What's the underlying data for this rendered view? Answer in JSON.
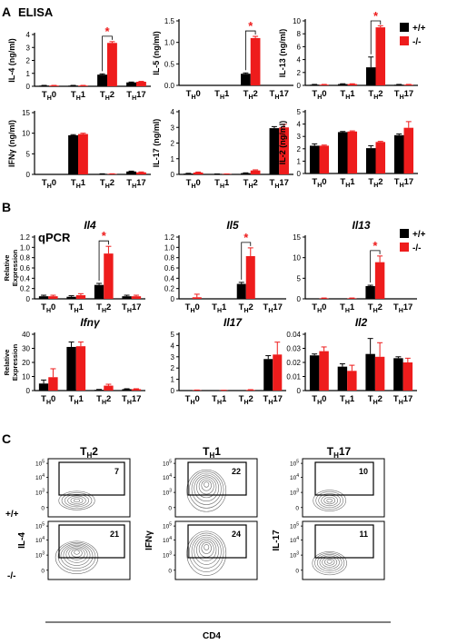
{
  "figure": {
    "section_A": {
      "letter": "A",
      "title": "ELISA"
    },
    "section_B": {
      "letter": "B",
      "title": "qPCR"
    },
    "section_C": {
      "letter": "C"
    }
  },
  "legend": {
    "wt_label": "+/+",
    "ko_label": "-/-",
    "wt_color": "#000000",
    "ko_color": "#ee1c1c"
  },
  "categories": [
    {
      "base": "T",
      "sub": "H",
      "suffix": "0"
    },
    {
      "base": "T",
      "sub": "H",
      "suffix": "1"
    },
    {
      "base": "T",
      "sub": "H",
      "suffix": "2"
    },
    {
      "base": "T",
      "sub": "H",
      "suffix": "17"
    }
  ],
  "chart_data": [
    {
      "type": "bar",
      "panel": "A",
      "ylabel": "IL-4 (ng/ml)",
      "ylim": [
        0,
        4
      ],
      "yticks": [
        "0",
        "1",
        "2",
        "3",
        "4"
      ],
      "series": [
        {
          "name": "+/+",
          "values": [
            0.05,
            0.05,
            0.9,
            0.3
          ],
          "errors": [
            0.02,
            0.02,
            0.06,
            0.03
          ]
        },
        {
          "name": "-/-",
          "values": [
            0.05,
            0.05,
            3.35,
            0.35
          ],
          "errors": [
            0.02,
            0.02,
            0.1,
            0.03
          ]
        }
      ],
      "significance": {
        "category": 2,
        "label": "*"
      }
    },
    {
      "type": "bar",
      "panel": "A",
      "ylabel": "IL-5 (ng/ml)",
      "ylim": [
        0,
        1.5
      ],
      "yticks": [
        "0.0",
        "0.5",
        "1.0",
        "1.5"
      ],
      "series": [
        {
          "name": "+/+",
          "values": [
            0,
            0,
            0.27,
            0
          ],
          "errors": [
            0,
            0,
            0.02,
            0
          ]
        },
        {
          "name": "-/-",
          "values": [
            0,
            0,
            1.1,
            0
          ],
          "errors": [
            0,
            0,
            0.04,
            0
          ]
        }
      ],
      "significance": {
        "category": 2,
        "label": "*"
      }
    },
    {
      "type": "bar",
      "panel": "A",
      "ylabel": "IL-13 (ng/ml)",
      "ylim": [
        0,
        10
      ],
      "yticks": [
        "0",
        "2",
        "4",
        "6",
        "8",
        "10"
      ],
      "series": [
        {
          "name": "+/+",
          "values": [
            0.1,
            0.2,
            2.8,
            0.1
          ],
          "errors": [
            0.05,
            0.05,
            1.6,
            0.05
          ]
        },
        {
          "name": "-/-",
          "values": [
            0.1,
            0.2,
            9.0,
            0.1
          ],
          "errors": [
            0.05,
            0.05,
            0.25,
            0.05
          ]
        }
      ],
      "significance": {
        "category": 2,
        "label": "*"
      }
    },
    {
      "type": "bar",
      "panel": "A",
      "ylabel": "IFNγ (ng/ml)",
      "ylim": [
        0,
        15
      ],
      "yticks": [
        "0",
        "5",
        "10",
        "15"
      ],
      "series": [
        {
          "name": "+/+",
          "values": [
            0,
            9.5,
            0.1,
            0.7
          ],
          "errors": [
            0,
            0.15,
            0.05,
            0.1
          ]
        },
        {
          "name": "-/-",
          "values": [
            0,
            9.8,
            0.1,
            0.5
          ],
          "errors": [
            0,
            0.2,
            0.05,
            0.1
          ]
        }
      ]
    },
    {
      "type": "bar",
      "panel": "A",
      "ylabel": "IL-17 (ng/ml)",
      "ylim": [
        0,
        4
      ],
      "yticks": [
        "0",
        "1",
        "2",
        "3",
        "4"
      ],
      "series": [
        {
          "name": "+/+",
          "values": [
            0.05,
            0.02,
            0.08,
            2.95
          ],
          "errors": [
            0.02,
            0.01,
            0.02,
            0.1
          ]
        },
        {
          "name": "-/-",
          "values": [
            0.12,
            0.02,
            0.25,
            3.0
          ],
          "errors": [
            0.03,
            0.01,
            0.04,
            0.2
          ]
        }
      ]
    },
    {
      "type": "bar",
      "panel": "A",
      "ylabel": "IL-2 (ng/ml)",
      "ylim": [
        0,
        5
      ],
      "yticks": [
        "0",
        "1",
        "2",
        "3",
        "4",
        "5"
      ],
      "series": [
        {
          "name": "+/+",
          "values": [
            2.25,
            3.35,
            2.05,
            3.1
          ],
          "errors": [
            0.15,
            0.05,
            0.2,
            0.1
          ]
        },
        {
          "name": "-/-",
          "values": [
            2.25,
            3.4,
            2.55,
            3.7
          ],
          "errors": [
            0.05,
            0.05,
            0.05,
            0.5
          ]
        }
      ]
    },
    {
      "type": "bar",
      "panel": "B",
      "title": "Il4",
      "ylabel": "Relative Expression",
      "ylim": [
        0,
        1.2
      ],
      "yticks": [
        "0",
        "0.2",
        "0.4",
        "0.6",
        "0.8",
        "1.0",
        "1.2"
      ],
      "series": [
        {
          "name": "+/+",
          "values": [
            0.05,
            0.04,
            0.27,
            0.05
          ],
          "errors": [
            0.02,
            0.02,
            0.03,
            0.02
          ]
        },
        {
          "name": "-/-",
          "values": [
            0.05,
            0.07,
            0.88,
            0.05
          ],
          "errors": [
            0.02,
            0.03,
            0.14,
            0.02
          ]
        }
      ],
      "significance": {
        "category": 2,
        "label": "*"
      }
    },
    {
      "type": "bar",
      "panel": "B",
      "title": "Il5",
      "ylim": [
        0,
        1.2
      ],
      "yticks": [
        "0",
        "0.2",
        "0.4",
        "0.6",
        "0.8",
        "1.0",
        "1.2"
      ],
      "series": [
        {
          "name": "+/+",
          "values": [
            0,
            0,
            0.29,
            0
          ],
          "errors": [
            0,
            0,
            0.03,
            0
          ]
        },
        {
          "name": "-/-",
          "values": [
            0.03,
            0,
            0.83,
            0
          ],
          "errors": [
            0.06,
            0,
            0.16,
            0
          ]
        }
      ],
      "significance": {
        "category": 2,
        "label": "*"
      }
    },
    {
      "type": "bar",
      "panel": "B",
      "title": "Il13",
      "ylim": [
        0,
        15
      ],
      "yticks": [
        "0",
        "5",
        "10",
        "15"
      ],
      "series": [
        {
          "name": "+/+",
          "values": [
            0,
            0,
            3.1,
            0
          ],
          "errors": [
            0,
            0,
            0.2,
            0
          ]
        },
        {
          "name": "-/-",
          "values": [
            0.1,
            0.1,
            8.9,
            0
          ],
          "errors": [
            0.1,
            0.1,
            1.5,
            0
          ]
        }
      ],
      "significance": {
        "category": 2,
        "label": "*"
      }
    },
    {
      "type": "bar",
      "panel": "B",
      "title": "Ifnγ",
      "ylabel": "Relative Expression",
      "ylim": [
        0,
        40
      ],
      "yticks": [
        "0",
        "10",
        "20",
        "30",
        "40"
      ],
      "series": [
        {
          "name": "+/+",
          "values": [
            5,
            31,
            0.5,
            1
          ],
          "errors": [
            2.5,
            3.5,
            0.3,
            0.3
          ]
        },
        {
          "name": "-/-",
          "values": [
            9.5,
            31.5,
            3.5,
            1
          ],
          "errors": [
            6,
            3,
            1,
            0.3
          ]
        }
      ]
    },
    {
      "type": "bar",
      "panel": "B",
      "title": "Il17",
      "ylim": [
        0,
        5
      ],
      "yticks": [
        "0",
        "1",
        "2",
        "3",
        "4",
        "5"
      ],
      "series": [
        {
          "name": "+/+",
          "values": [
            0,
            0,
            0,
            2.8
          ],
          "errors": [
            0,
            0,
            0,
            0.3
          ]
        },
        {
          "name": "-/-",
          "values": [
            0.03,
            0.02,
            0.05,
            3.2
          ],
          "errors": [
            0.02,
            0.01,
            0.03,
            1.1
          ]
        }
      ]
    },
    {
      "type": "bar",
      "panel": "B",
      "title": "Il2",
      "ylim": [
        0,
        0.04
      ],
      "yticks": [
        "0",
        "0.01",
        "0.02",
        "0.03",
        "0.04"
      ],
      "series": [
        {
          "name": "+/+",
          "values": [
            0.025,
            0.017,
            0.026,
            0.023
          ],
          "errors": [
            0.001,
            0.002,
            0.011,
            0.001
          ]
        },
        {
          "name": "-/-",
          "values": [
            0.028,
            0.014,
            0.024,
            0.02
          ],
          "errors": [
            0.003,
            0.004,
            0.01,
            0.003
          ]
        }
      ]
    }
  ],
  "flow": {
    "column_titles": [
      {
        "base": "T",
        "sub": "H",
        "suffix": "2"
      },
      {
        "base": "T",
        "sub": "H",
        "suffix": "1"
      },
      {
        "base": "T",
        "sub": "H",
        "suffix": "17"
      }
    ],
    "row_labels": [
      "+/+",
      "-/-"
    ],
    "y_labels": [
      "IL-4",
      "IFNγ",
      "IL-17"
    ],
    "x_label": "CD4",
    "tick_labels": [
      {
        "base": "10",
        "exp": "5"
      },
      {
        "base": "10",
        "exp": "4"
      },
      {
        "base": "10",
        "exp": "3"
      },
      {
        "base": "0",
        "exp": ""
      }
    ],
    "gate_values": [
      [
        "7",
        "22",
        "10"
      ],
      [
        "21",
        "24",
        "11"
      ]
    ],
    "contour_color": "#555555"
  }
}
